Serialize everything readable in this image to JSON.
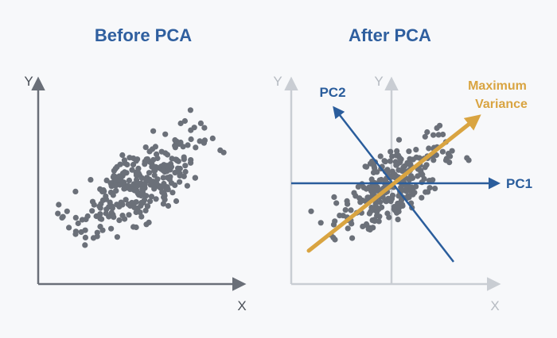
{
  "colors": {
    "background": "#f7f8fa",
    "title": "#2f5f9f",
    "dark_axis": "#6a6f78",
    "light_axis": "#c9cdd3",
    "points": "#6b7079",
    "pc_axis": "#2a5d9c",
    "variance": "#d9a441"
  },
  "panels": {
    "before": {
      "title": "Before PCA",
      "x_axis_label": "X",
      "y_axis_label": "Y"
    },
    "after": {
      "title": "After PCA",
      "x_axis_label": "X",
      "y_axis_label_outer": "Y",
      "y_axis_label_inner": "Y",
      "pc1_label": "PC1",
      "pc2_label": "PC2",
      "variance_label_line1": "Maximum",
      "variance_label_line2": "Variance"
    }
  }
}
